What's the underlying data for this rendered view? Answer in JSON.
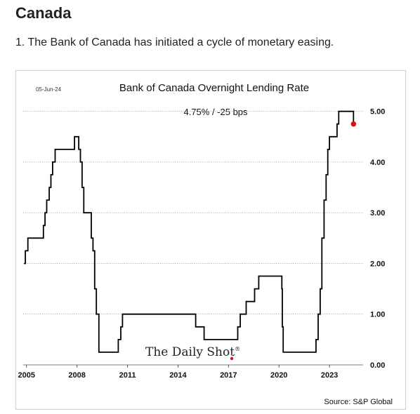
{
  "section": {
    "title": "Canada"
  },
  "headline": "1. The Bank of Canada has initiated a cycle of monetary easing.",
  "chart_data": {
    "type": "line",
    "date_label": "05-Jun-24",
    "title": "Bank of Canada Overnight Lending Rate",
    "annotation": "4.75%  /  -25 bps",
    "source": "Source: S&P Global",
    "logo_text": "The Daily Shot",
    "logo_mark": "®",
    "xlabel": "",
    "ylabel": "",
    "xlim": [
      2004.8,
      2025.0
    ],
    "ylim": [
      0,
      5.3
    ],
    "x_ticks": [
      2005,
      2008,
      2011,
      2014,
      2017,
      2020,
      2023
    ],
    "x_tick_labels": [
      "2005",
      "2008",
      "2011",
      "2014",
      "2017",
      "2020",
      "2023"
    ],
    "y_ticks": [
      0,
      1,
      2,
      3,
      4,
      5
    ],
    "y_tick_labels": [
      "0.00",
      "1.00",
      "2.00",
      "3.00",
      "4.00",
      "5.00"
    ],
    "grid": "horizontal-dotted",
    "y_axis_side": "right",
    "series": [
      {
        "step": true,
        "color": "#000000",
        "points": [
          [
            2004.85,
            2.0
          ],
          [
            2004.93,
            2.25
          ],
          [
            2005.08,
            2.5
          ],
          [
            2006.0,
            2.75
          ],
          [
            2006.1,
            3.0
          ],
          [
            2006.2,
            3.25
          ],
          [
            2006.35,
            3.5
          ],
          [
            2006.45,
            3.75
          ],
          [
            2006.55,
            4.0
          ],
          [
            2006.7,
            4.25
          ],
          [
            2007.85,
            4.5
          ],
          [
            2008.1,
            4.25
          ],
          [
            2008.2,
            4.0
          ],
          [
            2008.3,
            3.5
          ],
          [
            2008.4,
            3.0
          ],
          [
            2008.85,
            2.5
          ],
          [
            2008.95,
            2.25
          ],
          [
            2009.05,
            1.5
          ],
          [
            2009.15,
            1.0
          ],
          [
            2009.3,
            0.25
          ],
          [
            2010.45,
            0.5
          ],
          [
            2010.6,
            0.75
          ],
          [
            2010.7,
            1.0
          ],
          [
            2015.05,
            0.75
          ],
          [
            2015.55,
            0.5
          ],
          [
            2017.55,
            0.75
          ],
          [
            2017.7,
            1.0
          ],
          [
            2018.05,
            1.25
          ],
          [
            2018.55,
            1.5
          ],
          [
            2018.8,
            1.75
          ],
          [
            2020.17,
            1.5
          ],
          [
            2020.2,
            0.75
          ],
          [
            2020.25,
            0.25
          ],
          [
            2022.2,
            0.5
          ],
          [
            2022.33,
            1.0
          ],
          [
            2022.45,
            1.5
          ],
          [
            2022.55,
            2.5
          ],
          [
            2022.68,
            3.25
          ],
          [
            2022.8,
            3.75
          ],
          [
            2022.9,
            4.25
          ],
          [
            2023.0,
            4.5
          ],
          [
            2023.45,
            4.75
          ],
          [
            2023.55,
            5.0
          ],
          [
            2024.43,
            4.75
          ]
        ],
        "end_marker": {
          "x": 2024.43,
          "y": 4.75,
          "color": "#e01010"
        }
      }
    ]
  }
}
